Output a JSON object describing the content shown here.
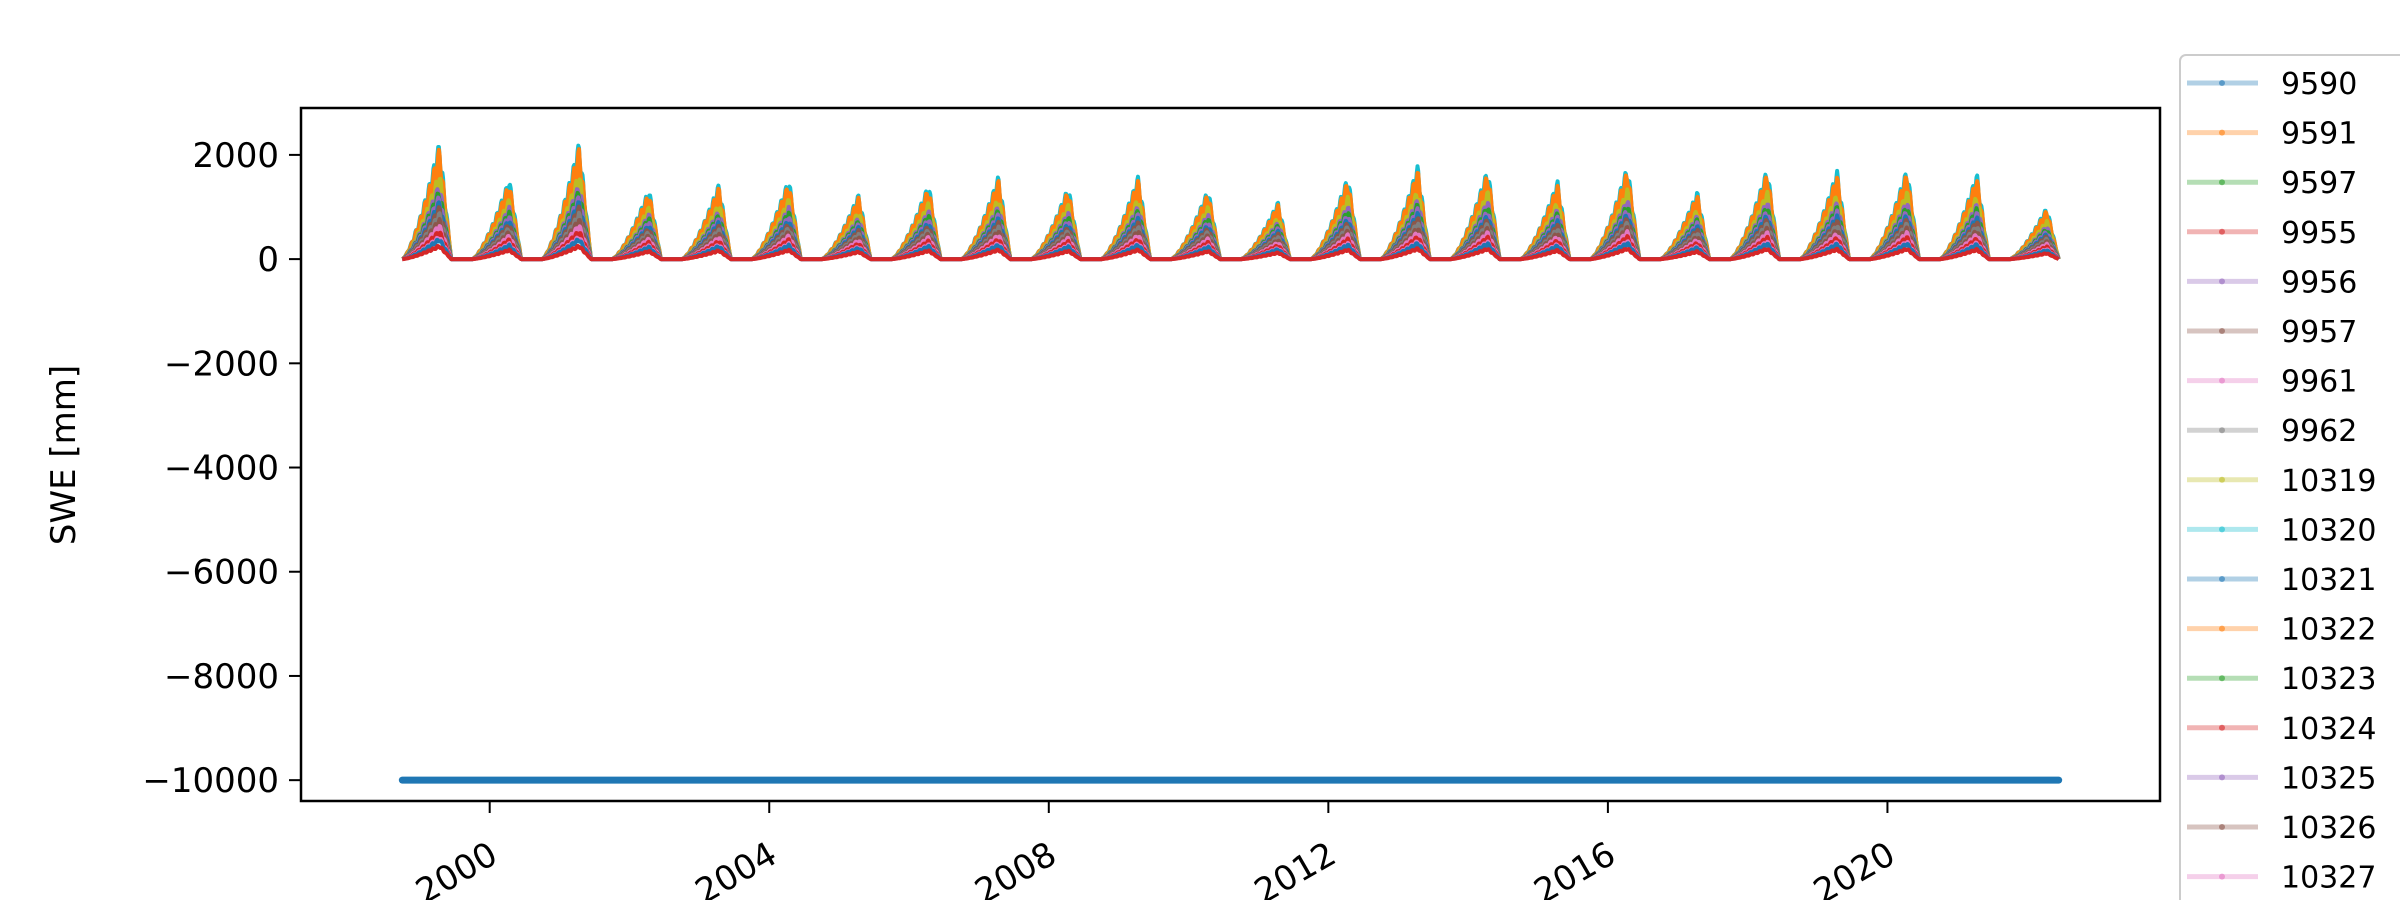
{
  "chart_data": {
    "type": "line",
    "title": "",
    "xlabel": "",
    "ylabel": "SWE [mm]",
    "xlim": [
      1997.3,
      2023.9
    ],
    "ylim": [
      -10400,
      2900
    ],
    "x_ticks": [
      2000,
      2004,
      2008,
      2012,
      2016,
      2020
    ],
    "x_tick_labels": [
      "2000",
      "2004",
      "2008",
      "2012",
      "2016",
      "2020"
    ],
    "y_ticks": [
      2000,
      0,
      -2000,
      -4000,
      -6000,
      -8000,
      -10000
    ],
    "y_tick_labels": [
      "2000",
      "0",
      "−2000",
      "−4000",
      "−6000",
      "−8000",
      "−10000"
    ],
    "grid": false,
    "legend_position": "outside-right",
    "data_range_x": [
      1998.75,
      2022.45
    ],
    "season_peaks": [
      {
        "year": 1999,
        "peak": 2250
      },
      {
        "year": 2000,
        "peak": 1550
      },
      {
        "year": 2001,
        "peak": 2250
      },
      {
        "year": 2002,
        "peak": 1350
      },
      {
        "year": 2003,
        "peak": 1450
      },
      {
        "year": 2004,
        "peak": 1550
      },
      {
        "year": 2005,
        "peak": 1250
      },
      {
        "year": 2006,
        "peak": 1450
      },
      {
        "year": 2007,
        "peak": 1600
      },
      {
        "year": 2008,
        "peak": 1400
      },
      {
        "year": 2009,
        "peak": 1600
      },
      {
        "year": 2010,
        "peak": 1350
      },
      {
        "year": 2011,
        "peak": 1100
      },
      {
        "year": 2012,
        "peak": 1600
      },
      {
        "year": 2013,
        "peak": 1800
      },
      {
        "year": 2014,
        "peak": 1750
      },
      {
        "year": 2015,
        "peak": 1500
      },
      {
        "year": 2016,
        "peak": 1800
      },
      {
        "year": 2017,
        "peak": 1300
      },
      {
        "year": 2018,
        "peak": 1750
      },
      {
        "year": 2019,
        "peak": 1700
      },
      {
        "year": 2020,
        "peak": 1750
      },
      {
        "year": 2021,
        "peak": 1650
      },
      {
        "year": 2022,
        "peak": 1000
      }
    ],
    "baseline_series": {
      "y": -10000,
      "color": "#1f77b4"
    },
    "series": [
      {
        "name": "9590",
        "color": "#1f77b4",
        "scale": 0.18
      },
      {
        "name": "9591",
        "color": "#ff7f0e",
        "scale": 0.95
      },
      {
        "name": "9597",
        "color": "#2ca02c",
        "scale": 0.45
      },
      {
        "name": "9955",
        "color": "#d62728",
        "scale": 0.25
      },
      {
        "name": "9956",
        "color": "#9467bd",
        "scale": 0.55
      },
      {
        "name": "9957",
        "color": "#8c564b",
        "scale": 0.35
      },
      {
        "name": "9961",
        "color": "#e377c2",
        "scale": 0.3
      },
      {
        "name": "9962",
        "color": "#7f7f7f",
        "scale": 0.4
      },
      {
        "name": "10319",
        "color": "#bcbd22",
        "scale": 0.75
      },
      {
        "name": "10320",
        "color": "#17becf",
        "scale": 1.0
      },
      {
        "name": "10321",
        "color": "#1f77b4",
        "scale": 0.5
      },
      {
        "name": "10322",
        "color": "#ff7f0e",
        "scale": 0.85
      },
      {
        "name": "10323",
        "color": "#2ca02c",
        "scale": 0.6
      },
      {
        "name": "10324",
        "color": "#d62728",
        "scale": 0.12
      },
      {
        "name": "10325",
        "color": "#9467bd",
        "scale": 0.65
      },
      {
        "name": "10326",
        "color": "#8c564b",
        "scale": 0.45
      },
      {
        "name": "10327",
        "color": "#e377c2",
        "scale": 0.2
      }
    ]
  }
}
